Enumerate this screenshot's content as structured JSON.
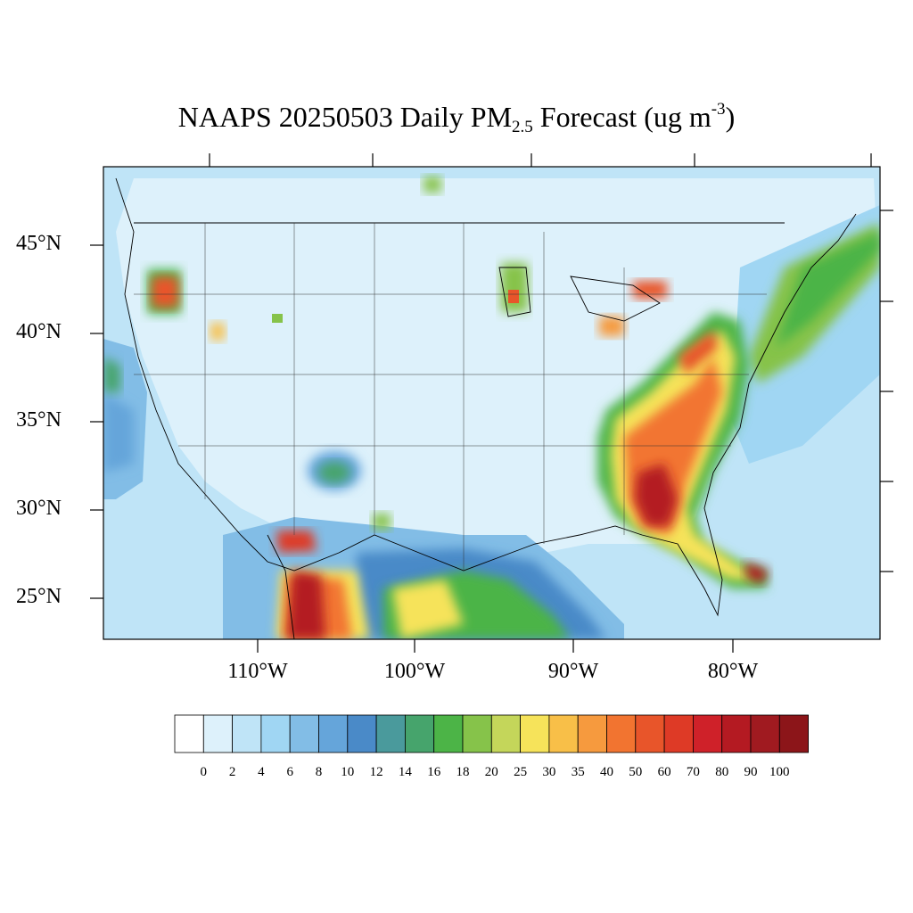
{
  "title": {
    "main": "NAAPS 20250503 Daily PM",
    "sub": "2.5",
    "mid": " Forecast (ug m",
    "sup": "-3",
    "end": ")"
  },
  "axes": {
    "lat_labels": [
      "45°N",
      "40°N",
      "35°N",
      "30°N",
      "25°N"
    ],
    "lon_labels": [
      "110°W",
      "100°W",
      "90°W",
      "80°W"
    ]
  },
  "colorbar": {
    "levels": [
      "0",
      "2",
      "4",
      "6",
      "8",
      "10",
      "12",
      "14",
      "16",
      "18",
      "20",
      "25",
      "30",
      "35",
      "40",
      "50",
      "60",
      "70",
      "80",
      "90",
      "100"
    ],
    "colors": [
      "#ffffff",
      "#ddf1fb",
      "#bfe4f7",
      "#a0d6f3",
      "#82bde6",
      "#65a5da",
      "#4a8ac8",
      "#4a9a9c",
      "#46a46c",
      "#4cb447",
      "#86c34a",
      "#c4d65a",
      "#f6e35a",
      "#f8bf48",
      "#f69a3e",
      "#f27430",
      "#e8552a",
      "#de3a26",
      "#cf2129",
      "#b41a22",
      "#a01a20",
      "#8c1519"
    ]
  }
}
